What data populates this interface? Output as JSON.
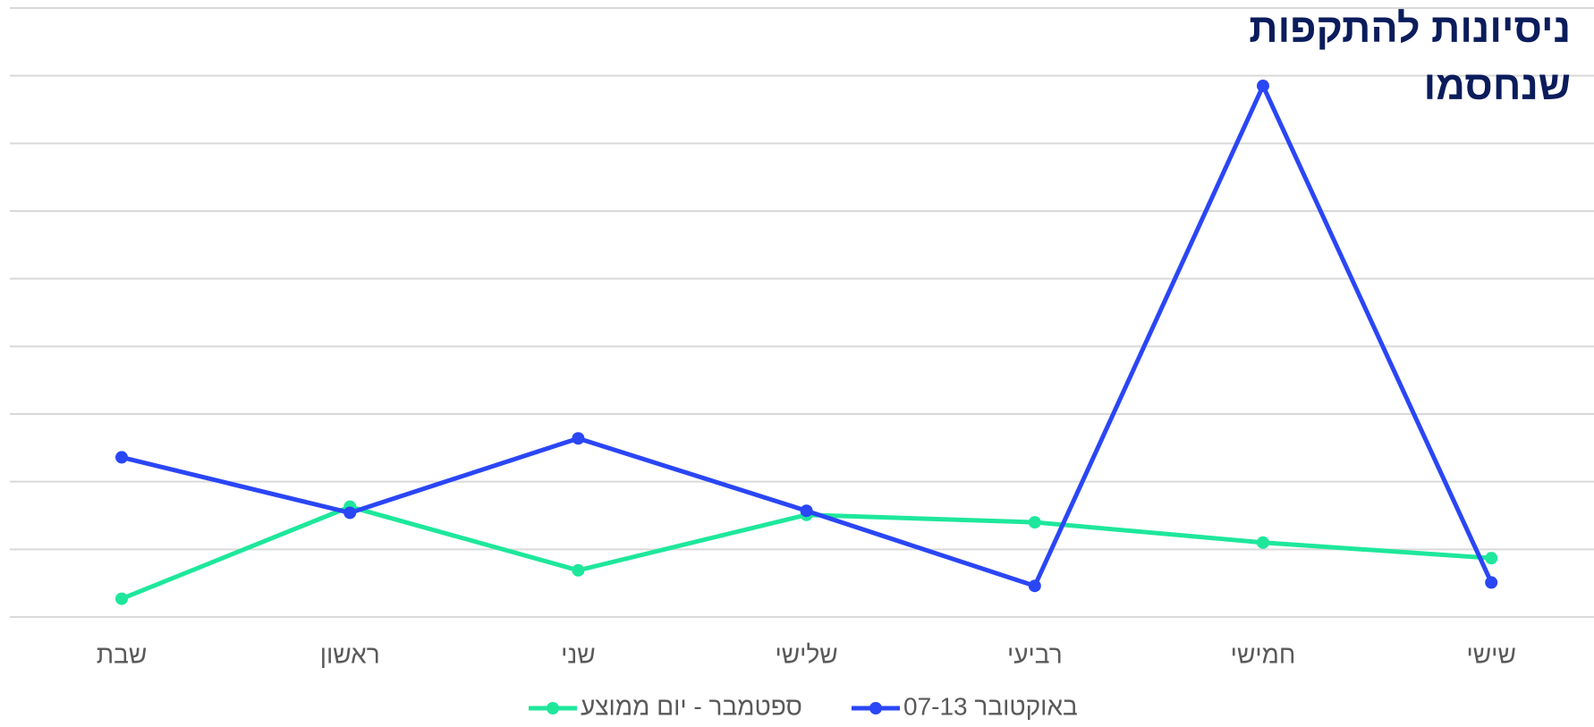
{
  "chart_data": {
    "type": "line",
    "title": "ניסיונות להתקפות שנחסמו",
    "categories": [
      "שבת",
      "ראשון",
      "שני",
      "שלישי",
      "רביעי",
      "חמישי",
      "שישי"
    ],
    "series": [
      {
        "name": "ספטמבר - יום ממוצע",
        "color": "#1ee79b",
        "values": [
          0.27,
          1.63,
          0.69,
          1.51,
          1.4,
          1.1,
          0.87
        ]
      },
      {
        "name": "07-13 באוקטובר",
        "color": "#2a46f5",
        "values": [
          2.36,
          1.54,
          2.64,
          1.57,
          0.46,
          7.85,
          0.51
        ]
      }
    ],
    "ylim": [
      0,
      9
    ],
    "yticks": [
      0,
      1,
      2,
      3,
      4,
      5,
      6,
      7,
      8,
      9
    ],
    "grid": true
  }
}
